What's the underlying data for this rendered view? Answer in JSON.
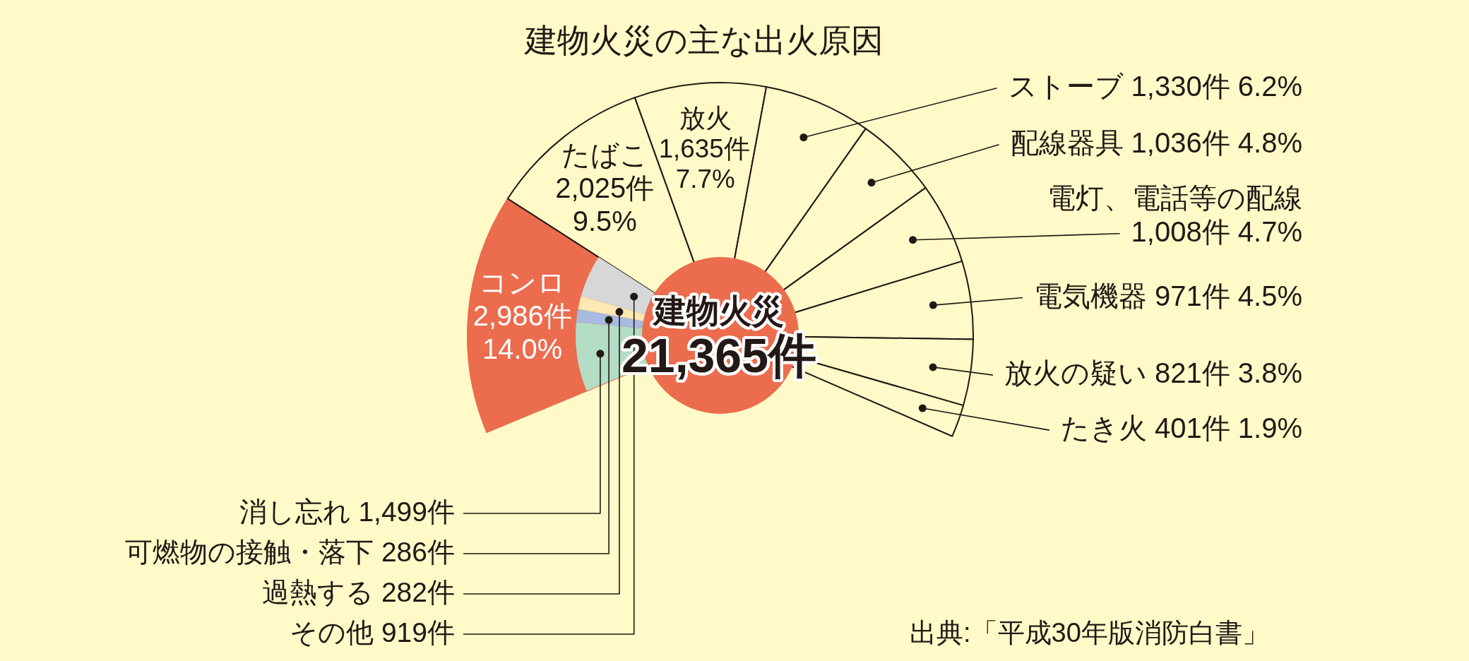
{
  "chart_data": [
    {
      "type": "donut",
      "title": "建物火災の主な出火原因",
      "categories": [
        "コンロ",
        "たばこ",
        "放火",
        "ストーブ",
        "配線器具",
        "電灯、電話等の配線",
        "電気機器",
        "放火の疑い",
        "たき火"
      ],
      "values": [
        2986,
        2025,
        1635,
        1330,
        1036,
        1008,
        971,
        821,
        401
      ],
      "colors": [
        "#ec6c4e",
        "#fffac8",
        "#fffac8",
        "#fffac8",
        "#fffac8",
        "#fffac8",
        "#fffac8",
        "#fffac8",
        "#fffac8"
      ],
      "value_labels": [
        "2,986件 14.0%",
        "2,025件 9.5%",
        "1,635件 7.7%",
        "1,330件 6.2%",
        "1,036件 4.8%",
        "1,008件 4.7%",
        "971件 4.5%",
        "821件 3.8%",
        "401件 1.9%"
      ],
      "annotations": [
        "建物火災",
        "21,365件",
        "出典:「平成30年版消防白書」"
      ]
    },
    {
      "type": "donut",
      "categories": [
        "消し忘れ",
        "可燃物の接触・落下",
        "過熱する",
        "その他"
      ],
      "values": [
        1499,
        286,
        282,
        919
      ],
      "colors": [
        "#b3ddc5",
        "#a8badf",
        "#fde8b3",
        "#d5d8d7"
      ],
      "value_labels": [
        "1,499件",
        "286件",
        "282件",
        "919件"
      ]
    }
  ]
}
